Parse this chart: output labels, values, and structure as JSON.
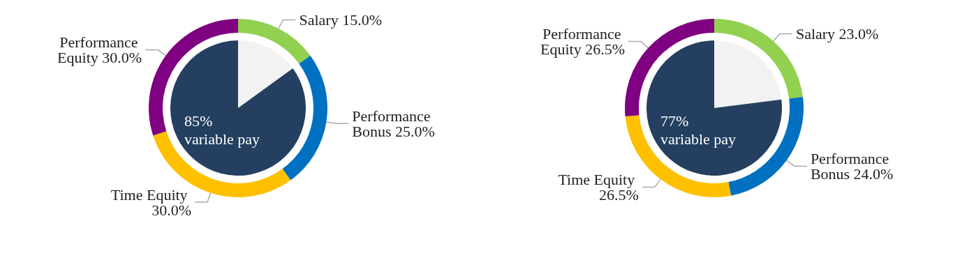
{
  "chart_data": [
    {
      "type": "donut",
      "categories": [
        "Salary",
        "Performance Bonus",
        "Time Equity",
        "Performance Equity"
      ],
      "values": [
        15,
        25,
        30,
        30
      ],
      "value_labels": [
        "15.0%",
        "25.0%",
        "30.0%",
        "30.0%"
      ],
      "colors": [
        "#92d050",
        "#0070c0",
        "#ffc000",
        "#7f0080"
      ],
      "legend": false
    },
    {
      "type": "pie",
      "categories": [
        null,
        null
      ],
      "values": [
        15,
        85
      ],
      "colors": [
        "#f2f2f2",
        "#243f60"
      ],
      "annotations": [
        "85% variable pay"
      ],
      "legend": false
    },
    {
      "type": "donut",
      "categories": [
        "Salary",
        "Performance Bonus",
        "Time Equity",
        "Performance Equity"
      ],
      "values": [
        23,
        24,
        26.5,
        26.5
      ],
      "value_labels": [
        "23.0%",
        "24.0%",
        "26.5%",
        "26.5%"
      ],
      "colors": [
        "#92d050",
        "#0070c0",
        "#ffc000",
        "#7f0080"
      ],
      "legend": false
    },
    {
      "type": "pie",
      "categories": [
        null,
        null
      ],
      "values": [
        23,
        77
      ],
      "colors": [
        "#f2f2f2",
        "#243f60"
      ],
      "annotations": [
        "77% variable pay"
      ],
      "legend": false
    }
  ]
}
